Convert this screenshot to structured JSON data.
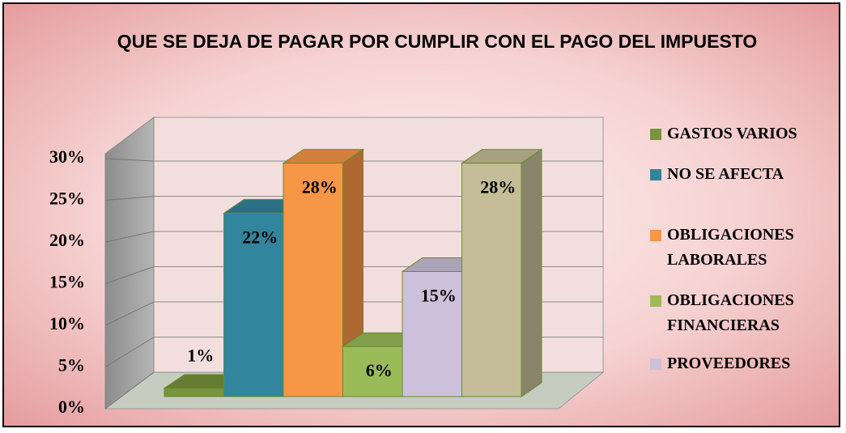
{
  "chart_data": {
    "type": "bar3d",
    "title": "QUE SE DEJA DE PAGAR POR CUMPLIR CON EL PAGO DEL IMPUESTO",
    "categories": [
      "GASTOS VARIOS",
      "NO SE AFECTA",
      "OBLIGACIONES LABORALES",
      "OBLIGACIONES FINANCIERAS",
      "PROVEEDORES",
      null
    ],
    "values": [
      1,
      22,
      28,
      6,
      15,
      28
    ],
    "value_labels": [
      "1%",
      "22%",
      "28%",
      "6%",
      "15%",
      "28%"
    ],
    "colors": [
      "#77933c",
      "#31859c",
      "#f79646",
      "#9bbb59",
      "#ccc0da",
      "#c4bd97"
    ],
    "ylim": [
      0,
      30
    ],
    "yticks": [
      {
        "value": 0,
        "label": "0%"
      },
      {
        "value": 5,
        "label": "5%"
      },
      {
        "value": 10,
        "label": "10%"
      },
      {
        "value": 15,
        "label": "15%"
      },
      {
        "value": 20,
        "label": "20%"
      },
      {
        "value": 25,
        "label": "25%"
      },
      {
        "value": 30,
        "label": "30%"
      }
    ],
    "grid": true,
    "legend": "right"
  }
}
